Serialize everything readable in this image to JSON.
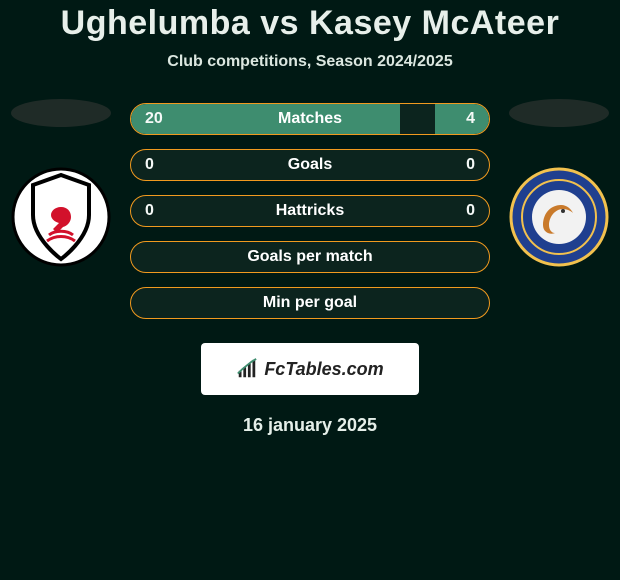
{
  "title": "Ughelumba vs Kasey McAteer",
  "subtitle": "Club competitions, Season 2024/2025",
  "date": "16 january 2025",
  "watermark": "FcTables.com",
  "colors": {
    "background": "#001914",
    "bar_border": "#f19a1f",
    "bar_fill": "#3e8d6f"
  },
  "rows": [
    {
      "label": "Matches",
      "left": "20",
      "right": "4",
      "left_pct": 75,
      "right_pct": 15
    },
    {
      "label": "Goals",
      "left": "0",
      "right": "0",
      "left_pct": 0,
      "right_pct": 0
    },
    {
      "label": "Hattricks",
      "left": "0",
      "right": "0",
      "left_pct": 0,
      "right_pct": 0
    },
    {
      "label": "Goals per match",
      "left": "",
      "right": "",
      "left_pct": 0,
      "right_pct": 0
    },
    {
      "label": "Min per goal",
      "left": "",
      "right": "",
      "left_pct": 0,
      "right_pct": 0
    }
  ],
  "teams": {
    "left": {
      "name": "Fulham"
    },
    "right": {
      "name": "Leicester City"
    }
  }
}
